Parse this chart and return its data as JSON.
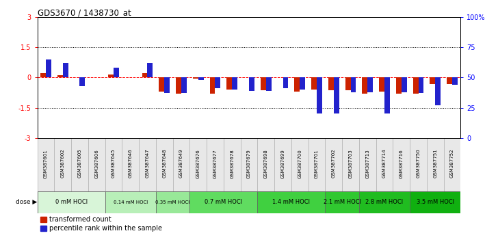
{
  "title": "GDS3670 / 1438730_at",
  "samples": [
    "GSM387601",
    "GSM387602",
    "GSM387605",
    "GSM387606",
    "GSM387645",
    "GSM387646",
    "GSM387647",
    "GSM387648",
    "GSM387649",
    "GSM387676",
    "GSM387677",
    "GSM387678",
    "GSM387679",
    "GSM387698",
    "GSM387699",
    "GSM387700",
    "GSM387701",
    "GSM387702",
    "GSM387703",
    "GSM387713",
    "GSM387714",
    "GSM387716",
    "GSM387750",
    "GSM387751",
    "GSM387752"
  ],
  "red_values": [
    0.22,
    0.1,
    0.0,
    0.0,
    0.16,
    0.0,
    0.2,
    -0.7,
    -0.8,
    -0.05,
    -0.8,
    -0.6,
    0.0,
    -0.65,
    0.0,
    -0.7,
    -0.6,
    -0.65,
    -0.65,
    -0.8,
    -0.7,
    -0.8,
    -0.8,
    -0.32,
    -0.32
  ],
  "blue_values_pct": [
    65,
    62,
    43,
    50,
    58,
    50,
    62,
    37,
    37,
    48,
    41,
    40,
    39,
    39,
    41,
    40,
    20,
    20,
    38,
    38,
    20,
    38,
    37,
    27,
    44
  ],
  "dose_groups": [
    {
      "label": "0 mM HOCl",
      "start": 0,
      "end": 4,
      "color": "#d8f5d8"
    },
    {
      "label": "0.14 mM HOCl",
      "start": 4,
      "end": 7,
      "color": "#b8efb8"
    },
    {
      "label": "0.35 mM HOCl",
      "start": 7,
      "end": 9,
      "color": "#98e898"
    },
    {
      "label": "0.7 mM HOCl",
      "start": 9,
      "end": 13,
      "color": "#60dc60"
    },
    {
      "label": "1.4 mM HOCl",
      "start": 13,
      "end": 17,
      "color": "#40d040"
    },
    {
      "label": "2.1 mM HOCl",
      "start": 17,
      "end": 19,
      "color": "#30c830"
    },
    {
      "label": "2.8 mM HOCl",
      "start": 19,
      "end": 22,
      "color": "#20bc20"
    },
    {
      "label": "3.5 mM HOCl",
      "start": 22,
      "end": 25,
      "color": "#10b010"
    }
  ],
  "ylim": [
    -3,
    3
  ],
  "yticks_left": [
    -3,
    -1.5,
    0,
    1.5,
    3
  ],
  "yticks_right_pct": [
    0,
    25,
    50,
    75,
    100
  ],
  "bar_width": 0.32,
  "red_color": "#cc2200",
  "blue_color": "#2222cc",
  "background_color": "#ffffff"
}
